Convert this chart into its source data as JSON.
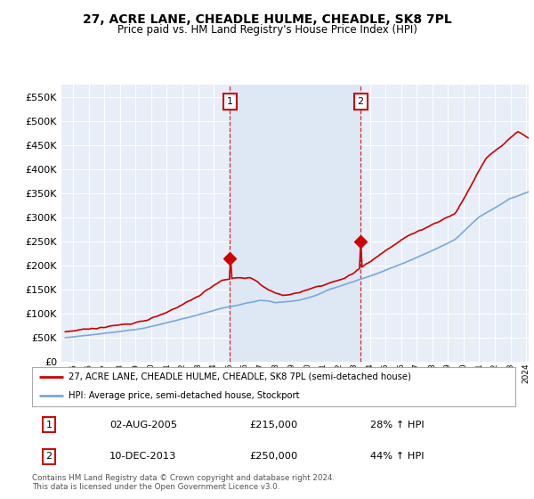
{
  "title": "27, ACRE LANE, CHEADLE HULME, CHEADLE, SK8 7PL",
  "subtitle": "Price paid vs. HM Land Registry's House Price Index (HPI)",
  "legend_line1": "27, ACRE LANE, CHEADLE HULME, CHEADLE, SK8 7PL (semi-detached house)",
  "legend_line2": "HPI: Average price, semi-detached house, Stockport",
  "marker1_date": "02-AUG-2005",
  "marker1_price": 215000,
  "marker1_hpi": "28% ↑ HPI",
  "marker2_date": "10-DEC-2013",
  "marker2_price": 250000,
  "marker2_hpi": "44% ↑ HPI",
  "footnote": "Contains HM Land Registry data © Crown copyright and database right 2024.\nThis data is licensed under the Open Government Licence v3.0.",
  "hpi_color": "#7aa8d8",
  "price_color": "#cc0000",
  "marker_vline_color": "#cc0000",
  "marker_box_color": "#cc0000",
  "ylim": [
    0,
    575000
  ],
  "yticks": [
    0,
    50000,
    100000,
    150000,
    200000,
    250000,
    300000,
    350000,
    400000,
    450000,
    500000,
    550000
  ],
  "background_color": "#ffffff",
  "plot_bg_color": "#e8eef8",
  "grid_color": "#ffffff",
  "span_color": "#dde8f4"
}
